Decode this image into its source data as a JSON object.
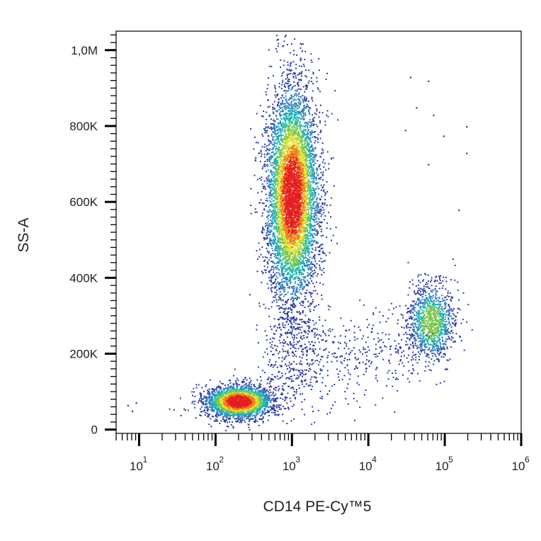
{
  "chart_data": {
    "type": "scatter",
    "plot_style": "flow cytometry density dot plot (pseudocolor)",
    "xlabel": "CD14 PE-Cy™5",
    "ylabel": "SS-A",
    "x_scale": "log",
    "xlim": [
      5,
      1000000
    ],
    "ylim": [
      -10000,
      1050000
    ],
    "grid": false,
    "x_ticks": [
      {
        "value": 10,
        "base": "10",
        "exp": "1"
      },
      {
        "value": 100,
        "base": "10",
        "exp": "2"
      },
      {
        "value": 1000,
        "base": "10",
        "exp": "3"
      },
      {
        "value": 10000,
        "base": "10",
        "exp": "4"
      },
      {
        "value": 100000,
        "base": "10",
        "exp": "5"
      },
      {
        "value": 1000000,
        "base": "10",
        "exp": "6"
      }
    ],
    "y_ticks": [
      {
        "value": 0,
        "label": "0"
      },
      {
        "value": 200000,
        "label": "200K"
      },
      {
        "value": 400000,
        "label": "400K"
      },
      {
        "value": 600000,
        "label": "600K"
      },
      {
        "value": 800000,
        "label": "800K"
      },
      {
        "value": 1000000,
        "label": "1,0M"
      }
    ],
    "density_colors": [
      "#2b3a9e",
      "#2f7fc1",
      "#19b7b0",
      "#7cc64a",
      "#e3e12a",
      "#f07b1d",
      "#e41f1f"
    ],
    "populations": [
      {
        "center_x": 200,
        "center_y": 75000,
        "spread_x_log10": 0.22,
        "spread_y": 22000,
        "points": 2600
      },
      {
        "center_x": 1000,
        "center_y": 620000,
        "spread_x_log10": 0.17,
        "spread_y": 140000,
        "points": 6500
      },
      {
        "center_x": 65000,
        "center_y": 285000,
        "spread_x_log10": 0.15,
        "spread_y": 50000,
        "points": 1100
      }
    ],
    "scattered_points": [
      {
        "x": 7,
        "y": 65000
      },
      {
        "x": 8,
        "y": 50000
      },
      {
        "x": 9,
        "y": 72000
      },
      {
        "x": 35000,
        "y": 930000
      },
      {
        "x": 60000,
        "y": 920000
      },
      {
        "x": 42000,
        "y": 850000
      },
      {
        "x": 70000,
        "y": 830000
      },
      {
        "x": 30000,
        "y": 790000
      },
      {
        "x": 95000,
        "y": 775000
      },
      {
        "x": 190000,
        "y": 800000
      },
      {
        "x": 190000,
        "y": 730000
      },
      {
        "x": 60000,
        "y": 700000
      },
      {
        "x": 150000,
        "y": 580000
      }
    ]
  }
}
